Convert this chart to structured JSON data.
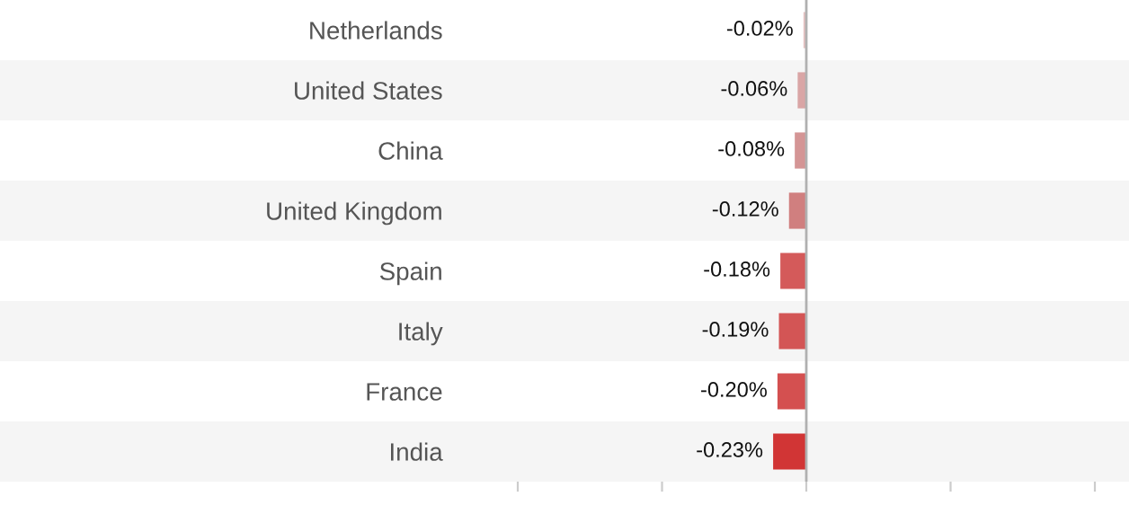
{
  "chart_data": {
    "type": "bar",
    "orientation": "horizontal",
    "categories": [
      "Netherlands",
      "United States",
      "China",
      "United Kingdom",
      "Spain",
      "Italy",
      "France",
      "India"
    ],
    "values": [
      -0.02,
      -0.06,
      -0.08,
      -0.12,
      -0.18,
      -0.19,
      -0.2,
      -0.23
    ],
    "colors": [
      "#e6c3c3",
      "#d9a5a5",
      "#d49595",
      "#d07f7f",
      "#d45a5a",
      "#d35555",
      "#d45050",
      "#d13535"
    ],
    "value_labels": [
      "-0.02%",
      "-0.06%",
      "-0.08%",
      "-0.12%",
      "-0.18%",
      "-0.19%",
      "-0.20%",
      "-0.23%"
    ],
    "xticks": [
      {
        "value": -2,
        "label": null
      },
      {
        "value": -1,
        "label": null
      },
      {
        "value": 0,
        "label": null
      },
      {
        "value": 1,
        "label": null
      },
      {
        "value": 2,
        "label": null
      }
    ],
    "grid": false
  }
}
